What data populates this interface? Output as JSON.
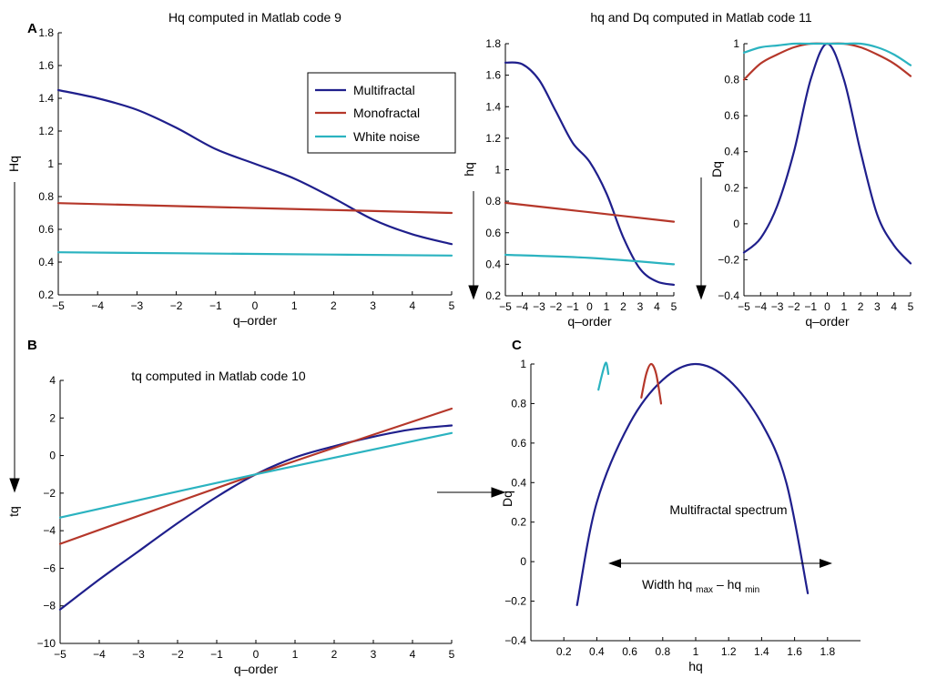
{
  "panels": {
    "A": "A",
    "B": "B",
    "C": "C"
  },
  "colors": {
    "multifractal": "#1f1f8c",
    "monofractal": "#b5372a",
    "white_noise": "#2bb3c0"
  },
  "legend": {
    "multifractal": "Multifractal",
    "monofractal": "Monofractal",
    "white_noise": "White noise"
  },
  "annotations": {
    "spectrum_label": "Multifractal spectrum",
    "width_label": "Width hq",
    "width_max_sub": "max",
    "width_dash": " – hq",
    "width_min_sub": "min"
  },
  "chart_data": [
    {
      "id": "Hq",
      "type": "line",
      "title": "Hq computed in Matlab code 9",
      "xlabel": "q–order",
      "ylabel": "Hq",
      "xlim": [
        -5,
        5
      ],
      "ylim": [
        0.2,
        1.8
      ],
      "xticks": [
        -5,
        -4,
        -3,
        -2,
        -1,
        0,
        1,
        2,
        3,
        4,
        5
      ],
      "yticks": [
        0.2,
        0.4,
        0.6,
        0.8,
        1,
        1.2,
        1.4,
        1.6,
        1.8
      ],
      "series": [
        {
          "name": "Multifractal",
          "x": [
            -5,
            -4,
            -3,
            -2,
            -1,
            0,
            1,
            2,
            3,
            4,
            5
          ],
          "values": [
            1.45,
            1.4,
            1.33,
            1.22,
            1.09,
            1.0,
            0.91,
            0.79,
            0.66,
            0.57,
            0.51
          ]
        },
        {
          "name": "Monofractal",
          "x": [
            -5,
            0,
            5
          ],
          "values": [
            0.76,
            0.73,
            0.7
          ]
        },
        {
          "name": "White noise",
          "x": [
            -5,
            0,
            5
          ],
          "values": [
            0.46,
            0.45,
            0.44
          ]
        }
      ],
      "legend_position": "top-right",
      "grid": false
    },
    {
      "id": "hq",
      "type": "line",
      "title": "hq and Dq computed in Matlab code 11",
      "xlabel": "q–order",
      "ylabel": "hq",
      "xlim": [
        -5,
        5
      ],
      "ylim": [
        0.2,
        1.8
      ],
      "xticks": [
        -5,
        -4,
        -3,
        -2,
        -1,
        0,
        1,
        2,
        3,
        4,
        5
      ],
      "yticks": [
        0.2,
        0.4,
        0.6,
        0.8,
        1,
        1.2,
        1.4,
        1.6,
        1.8
      ],
      "series": [
        {
          "name": "Multifractal",
          "x": [
            -5,
            -4,
            -3,
            -2,
            -1,
            0,
            1,
            2,
            3,
            4,
            5
          ],
          "values": [
            1.68,
            1.67,
            1.57,
            1.37,
            1.17,
            1.05,
            0.85,
            0.57,
            0.37,
            0.29,
            0.27
          ]
        },
        {
          "name": "Monofractal",
          "x": [
            -5,
            0,
            5
          ],
          "values": [
            0.79,
            0.73,
            0.67
          ]
        },
        {
          "name": "White noise",
          "x": [
            -5,
            0,
            5
          ],
          "values": [
            0.46,
            0.44,
            0.4
          ]
        }
      ],
      "grid": false
    },
    {
      "id": "Dq",
      "type": "line",
      "title": "",
      "xlabel": "q–order",
      "ylabel": "Dq",
      "xlim": [
        -5,
        5
      ],
      "ylim": [
        -0.4,
        1.0
      ],
      "xticks": [
        -5,
        -4,
        -3,
        -2,
        -1,
        0,
        1,
        2,
        3,
        4,
        5
      ],
      "yticks": [
        -0.4,
        -0.2,
        0,
        0.2,
        0.4,
        0.6,
        0.8,
        1
      ],
      "series": [
        {
          "name": "Multifractal",
          "x": [
            -5,
            -4,
            -3,
            -2,
            -1,
            0,
            1,
            2,
            3,
            4,
            5
          ],
          "values": [
            -0.16,
            -0.08,
            0.1,
            0.4,
            0.8,
            1.0,
            0.8,
            0.4,
            0.05,
            -0.12,
            -0.22
          ]
        },
        {
          "name": "Monofractal",
          "x": [
            -5,
            -4,
            -3,
            -2,
            -1,
            0,
            1,
            2,
            3,
            4,
            5
          ],
          "values": [
            0.8,
            0.89,
            0.94,
            0.98,
            1.0,
            1.0,
            1.0,
            0.98,
            0.94,
            0.89,
            0.82
          ]
        },
        {
          "name": "White noise",
          "x": [
            -5,
            -4,
            -3,
            -2,
            -1,
            0,
            1,
            2,
            3,
            4,
            5
          ],
          "values": [
            0.95,
            0.98,
            0.99,
            1.0,
            1.0,
            1.0,
            1.0,
            1.0,
            0.98,
            0.94,
            0.88
          ]
        }
      ],
      "grid": false
    },
    {
      "id": "tq",
      "type": "line",
      "title": "tq computed in Matlab code 10",
      "xlabel": "q–order",
      "ylabel": "tq",
      "xlim": [
        -5,
        5
      ],
      "ylim": [
        -10,
        4
      ],
      "xticks": [
        -5,
        -4,
        -3,
        -2,
        -1,
        0,
        1,
        2,
        3,
        4,
        5
      ],
      "yticks": [
        -10,
        -8,
        -6,
        -4,
        -2,
        0,
        2,
        4
      ],
      "series": [
        {
          "name": "Multifractal",
          "x": [
            -5,
            -4,
            -3,
            -2,
            -1,
            0,
            1,
            2,
            3,
            4,
            5
          ],
          "values": [
            -8.2,
            -6.6,
            -5.1,
            -3.6,
            -2.2,
            -1.0,
            -0.1,
            0.5,
            1.0,
            1.4,
            1.6
          ]
        },
        {
          "name": "Monofractal",
          "x": [
            -5,
            0,
            5
          ],
          "values": [
            -4.7,
            -1.0,
            2.5
          ]
        },
        {
          "name": "White noise",
          "x": [
            -5,
            0,
            5
          ],
          "values": [
            -3.3,
            -1.0,
            1.2
          ]
        }
      ],
      "grid": false
    },
    {
      "id": "spectrum",
      "type": "line",
      "title": "",
      "xlabel": "hq",
      "ylabel": "Dq",
      "xlim": [
        0,
        2
      ],
      "ylim": [
        -0.4,
        1.0
      ],
      "xticks": [
        0.2,
        0.4,
        0.6,
        0.8,
        1,
        1.2,
        1.4,
        1.6,
        1.8
      ],
      "yticks": [
        -0.4,
        -0.2,
        0,
        0.2,
        0.4,
        0.6,
        0.8,
        1
      ],
      "series": [
        {
          "name": "Multifractal",
          "x": [
            0.28,
            0.4,
            0.6,
            0.8,
            1.0,
            1.2,
            1.4,
            1.55,
            1.68
          ],
          "values": [
            -0.22,
            0.3,
            0.7,
            0.92,
            1.0,
            0.92,
            0.7,
            0.4,
            -0.16
          ]
        },
        {
          "name": "Monofractal",
          "x": [
            0.67,
            0.7,
            0.73,
            0.76,
            0.79
          ],
          "values": [
            0.83,
            0.95,
            1.0,
            0.95,
            0.8
          ]
        },
        {
          "name": "White noise",
          "x": [
            0.41,
            0.43,
            0.45,
            0.46,
            0.47
          ],
          "values": [
            0.87,
            0.94,
            1.0,
            1.0,
            0.95
          ]
        }
      ],
      "grid": false
    }
  ]
}
